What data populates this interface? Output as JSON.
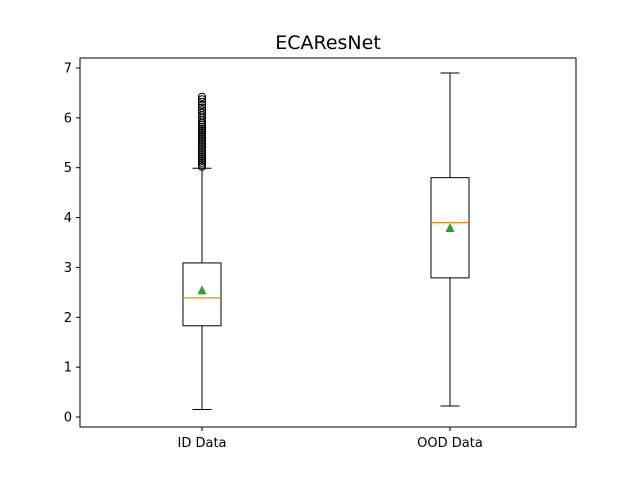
{
  "chart_data": {
    "type": "box",
    "title": "ECAResNet",
    "xlabel": "",
    "ylabel": "",
    "categories": [
      "ID Data",
      "OOD Data"
    ],
    "ylim": [
      -0.2,
      7.2
    ],
    "yticks": [
      0,
      1,
      2,
      3,
      4,
      5,
      6,
      7
    ],
    "grid": false,
    "boxes": [
      {
        "label": "ID Data",
        "whisker_low": 0.15,
        "q1": 1.83,
        "median": 2.39,
        "q3": 3.09,
        "whisker_high": 4.99,
        "mean": 2.54,
        "outliers": [
          5.02,
          5.06,
          5.1,
          5.14,
          5.18,
          5.22,
          5.26,
          5.3,
          5.34,
          5.38,
          5.42,
          5.46,
          5.5,
          5.54,
          5.58,
          5.62,
          5.66,
          5.7,
          5.74,
          5.78,
          5.82,
          5.86,
          5.9,
          5.95,
          6.0,
          6.05,
          6.1,
          6.15,
          6.2,
          6.26,
          6.32,
          6.37,
          6.42
        ]
      },
      {
        "label": "OOD Data",
        "whisker_low": 0.22,
        "q1": 2.79,
        "median": 3.9,
        "q3": 4.8,
        "whisker_high": 6.9,
        "mean": 3.79,
        "outliers": []
      }
    ],
    "colors": {
      "box": "#000000",
      "median": "#ff7f0e",
      "mean": "#2ca02c"
    }
  }
}
